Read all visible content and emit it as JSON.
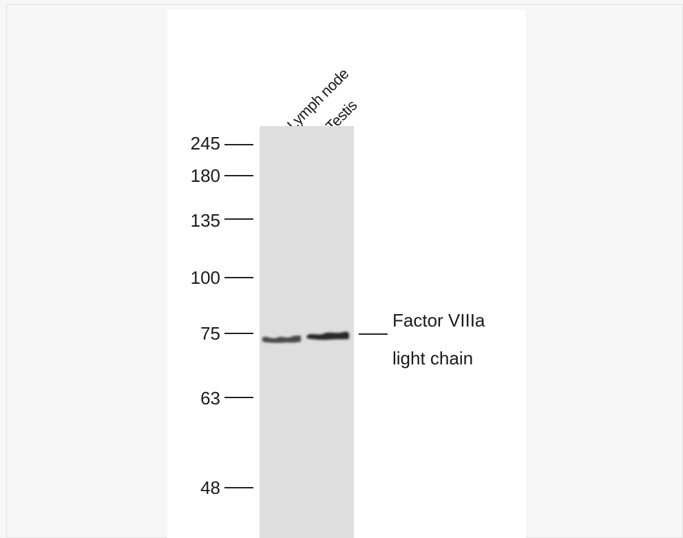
{
  "lanes": [
    {
      "label": "Lymph node"
    },
    {
      "label": "Testis"
    }
  ],
  "markers": [
    {
      "value": "245"
    },
    {
      "value": "180"
    },
    {
      "value": "135"
    },
    {
      "value": "100"
    },
    {
      "value": "75"
    },
    {
      "value": "63"
    },
    {
      "value": "48"
    }
  ],
  "band_annotation": {
    "line1": "Factor VIIIa",
    "line2": "light chain"
  },
  "colors": {
    "lane_background": "#dedede",
    "band": "#2a2a2a"
  }
}
